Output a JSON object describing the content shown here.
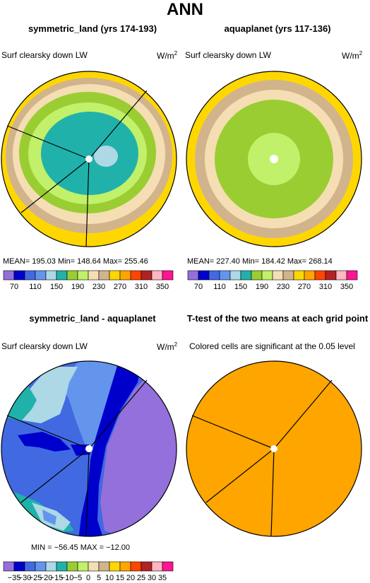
{
  "title": "ANN",
  "colors": {
    "lw_palette": [
      "#9370db",
      "#0000cd",
      "#4169e1",
      "#6495ed",
      "#add8e6",
      "#20b2aa",
      "#9acd32",
      "#c1f06a",
      "#f5deb3",
      "#d2b48c",
      "#ffd700",
      "#ffa500",
      "#ff4500",
      "#b22222",
      "#ffb6c1",
      "#ff1493"
    ],
    "diff_palette": [
      "#9370db",
      "#0000cd",
      "#4169e1",
      "#6495ed",
      "#add8e6",
      "#20b2aa",
      "#9acd32",
      "#c1f06a",
      "#f5deb3",
      "#d2b48c",
      "#ffd700",
      "#ffa500",
      "#ff4500",
      "#b22222",
      "#ffb6c1",
      "#ff1493"
    ],
    "significance": "#ffa500"
  },
  "panels": {
    "symmetric_land": {
      "title": "symmetric_land (yrs 174-193)",
      "variable": "Surf clearsky down LW",
      "units_base": "W/m",
      "units_exp": "2",
      "stats": "MEAN= 195.03   Min= 148.64   Max= 255.46"
    },
    "aquaplanet": {
      "title": "aquaplanet (yrs 117-136)",
      "variable": "Surf clearsky down LW",
      "units_base": "W/m",
      "units_exp": "2",
      "stats": "MEAN= 227.40   Min= 184.42   Max= 268.14"
    },
    "difference": {
      "title": "symmetric_land - aquaplanet",
      "variable": "Surf clearsky down LW",
      "units_base": "W/m",
      "units_exp": "2",
      "stats": "MIN = −56.45   MAX = −12.00"
    },
    "ttest": {
      "title": "T-test of the two means at each grid point",
      "subtitle": "Colored cells are significant at the 0.05 level"
    }
  },
  "chart_data": [
    {
      "type": "heatmap",
      "title": "symmetric_land (yrs 174-193)",
      "field": "Surf clearsky down LW",
      "units": "W/m2",
      "mean": 195.03,
      "min": 148.64,
      "max": 255.46,
      "contour_levels": [
        70,
        90,
        110,
        130,
        150,
        170,
        190,
        210,
        230,
        250,
        270,
        290,
        310,
        330,
        350
      ],
      "colorbar_tick_labels": [
        "70",
        "110",
        "150",
        "190",
        "230",
        "270",
        "310",
        "350"
      ],
      "nested_contour_bands_center_to_edge": [
        170,
        190,
        210,
        230,
        250,
        270
      ]
    },
    {
      "type": "heatmap",
      "title": "aquaplanet (yrs 117-136)",
      "field": "Surf clearsky down LW",
      "units": "W/m2",
      "mean": 227.4,
      "min": 184.42,
      "max": 268.14,
      "contour_levels": [
        70,
        90,
        110,
        130,
        150,
        170,
        190,
        210,
        230,
        250,
        270,
        290,
        310,
        330,
        350
      ],
      "colorbar_tick_labels": [
        "70",
        "110",
        "150",
        "190",
        "230",
        "270",
        "310",
        "350"
      ],
      "nested_contour_bands_center_to_edge": [
        190,
        210,
        230,
        250,
        270
      ]
    },
    {
      "type": "heatmap",
      "title": "symmetric_land - aquaplanet",
      "field": "Surf clearsky down LW",
      "units": "W/m2",
      "min": -56.45,
      "max": -12.0,
      "contour_levels": [
        -35,
        -30,
        -25,
        -20,
        -15,
        -10,
        -5,
        0,
        5,
        10,
        15,
        20,
        25,
        30,
        35
      ],
      "colorbar_tick_labels": [
        "−35",
        "−30",
        "−25",
        "−20",
        "−15",
        "−10",
        "−5",
        "0",
        "5",
        "10",
        "15",
        "20",
        "25",
        "30",
        "35"
      ]
    },
    {
      "type": "heatmap",
      "title": "T-test of the two means at each grid point",
      "note": "Colored cells are significant at the 0.05 level",
      "significant_fraction": 1.0
    }
  ]
}
